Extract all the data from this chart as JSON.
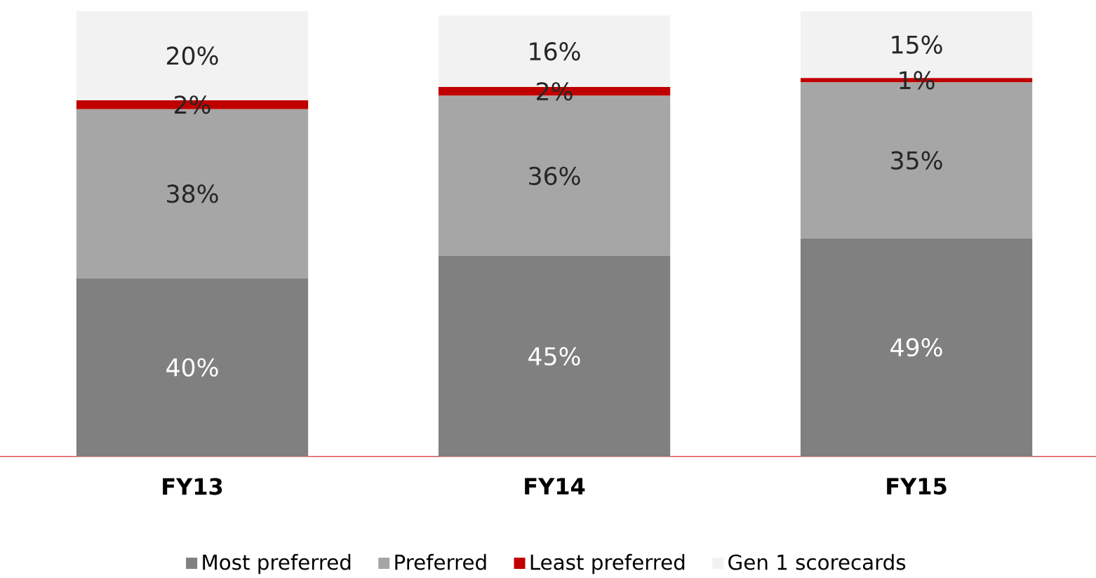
{
  "chart_data": {
    "type": "bar",
    "stacked": true,
    "categories": [
      "FY13",
      "FY14",
      "FY15"
    ],
    "legend": "bottom",
    "series": [
      {
        "name": "Most preferred",
        "color": "#808080",
        "values": [
          40,
          45,
          49
        ],
        "value_labels": [
          "40%",
          "45%",
          "49%"
        ]
      },
      {
        "name": "Preferred",
        "color": "#a6a6a6",
        "values": [
          38,
          36,
          35
        ],
        "value_labels": [
          "38%",
          "36%",
          "35%"
        ]
      },
      {
        "name": "Least preferred",
        "color": "#c00000",
        "values": [
          2,
          2,
          1
        ],
        "value_labels": [
          "2%",
          "2%",
          "1%"
        ]
      },
      {
        "name": "Gen 1 scorecards",
        "color": "#f2f2f2",
        "values": [
          20,
          16,
          15
        ],
        "value_labels": [
          "20%",
          "16%",
          "15%"
        ]
      }
    ]
  }
}
